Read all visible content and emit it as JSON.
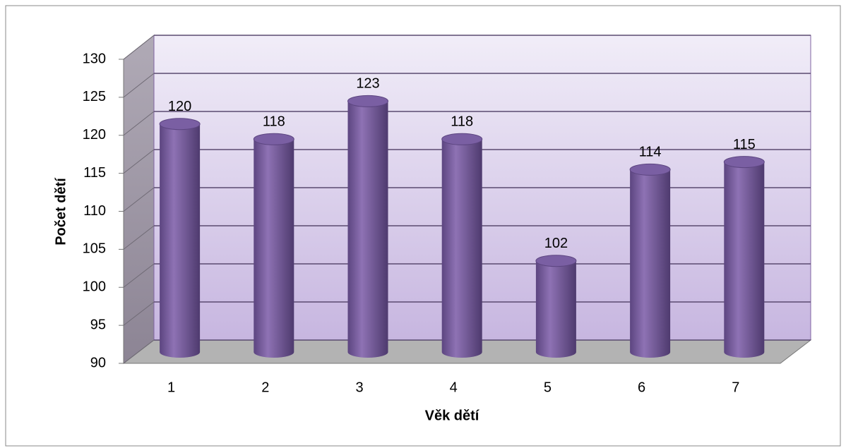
{
  "chart_data": {
    "type": "bar",
    "x_label": "Věk dětí",
    "y_label": "Počet dětí",
    "categories": [
      "1",
      "2",
      "3",
      "4",
      "5",
      "6",
      "7"
    ],
    "values": [
      120,
      118,
      123,
      118,
      102,
      114,
      115
    ],
    "color": "#8064a2",
    "ylim": [
      90,
      130
    ],
    "yticks": [
      90,
      95,
      100,
      105,
      110,
      115,
      120,
      125,
      130
    ],
    "grid": true
  }
}
